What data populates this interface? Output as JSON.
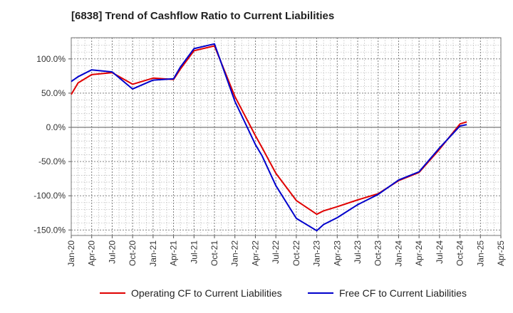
{
  "chart_data": {
    "type": "line",
    "title": "[6838]  Trend of Cashflow Ratio to Current Liabilities",
    "xlabel": "",
    "ylabel": "",
    "x_ticks": [
      "Jan-20",
      "Apr-20",
      "Jul-20",
      "Oct-20",
      "Jan-21",
      "Apr-21",
      "Jul-21",
      "Oct-21",
      "Jan-22",
      "Apr-22",
      "Jul-22",
      "Oct-22",
      "Jan-23",
      "Apr-23",
      "Jul-23",
      "Oct-23",
      "Jan-24",
      "Apr-24",
      "Jul-24",
      "Oct-24",
      "Jan-25",
      "Apr-25"
    ],
    "y_ticks": [
      "-150.0%",
      "-100.0%",
      "-50.0%",
      "0.0%",
      "50.0%",
      "100.0%"
    ],
    "y_tick_values": [
      -150,
      -100,
      -50,
      0,
      50,
      100
    ],
    "ylim": [
      -158,
      131
    ],
    "grid": true,
    "legend_position": "bottom",
    "series": [
      {
        "name": "Operating CF to Current Liabilities",
        "color": "#e00000",
        "x": [
          "Jan-20",
          "Feb-20",
          "Apr-20",
          "Jul-20",
          "Oct-20",
          "Jan-21",
          "Apr-21",
          "May-21",
          "Jul-21",
          "Oct-21",
          "Jan-22",
          "Apr-22",
          "May-22",
          "Jul-22",
          "Oct-22",
          "Jan-23",
          "Feb-23",
          "Apr-23",
          "Jul-23",
          "Oct-23",
          "Jan-24",
          "Apr-24",
          "Jul-24",
          "Oct-24",
          "Nov-24"
        ],
        "values": [
          48,
          65,
          77,
          80,
          63,
          72,
          70,
          85,
          112,
          119,
          45,
          -12,
          -30,
          -67,
          -107,
          -127,
          -122,
          -116,
          -106,
          -97,
          -78,
          -66,
          -32,
          5,
          8
        ]
      },
      {
        "name": "Free CF to Current Liabilities",
        "color": "#0000cc",
        "x": [
          "Jan-20",
          "Feb-20",
          "Apr-20",
          "Jul-20",
          "Oct-20",
          "Jan-21",
          "Apr-21",
          "May-21",
          "Jul-21",
          "Oct-21",
          "Jan-22",
          "Apr-22",
          "May-22",
          "Jul-22",
          "Oct-22",
          "Jan-23",
          "Feb-23",
          "Apr-23",
          "Jul-23",
          "Oct-23",
          "Jan-24",
          "Apr-24",
          "Jul-24",
          "Oct-24",
          "Nov-24"
        ],
        "values": [
          67,
          74,
          84,
          81,
          56,
          69,
          71,
          88,
          115,
          122,
          38,
          -25,
          -42,
          -85,
          -133,
          -151,
          -142,
          -132,
          -113,
          -98,
          -77,
          -65,
          -30,
          2,
          4
        ]
      }
    ]
  }
}
